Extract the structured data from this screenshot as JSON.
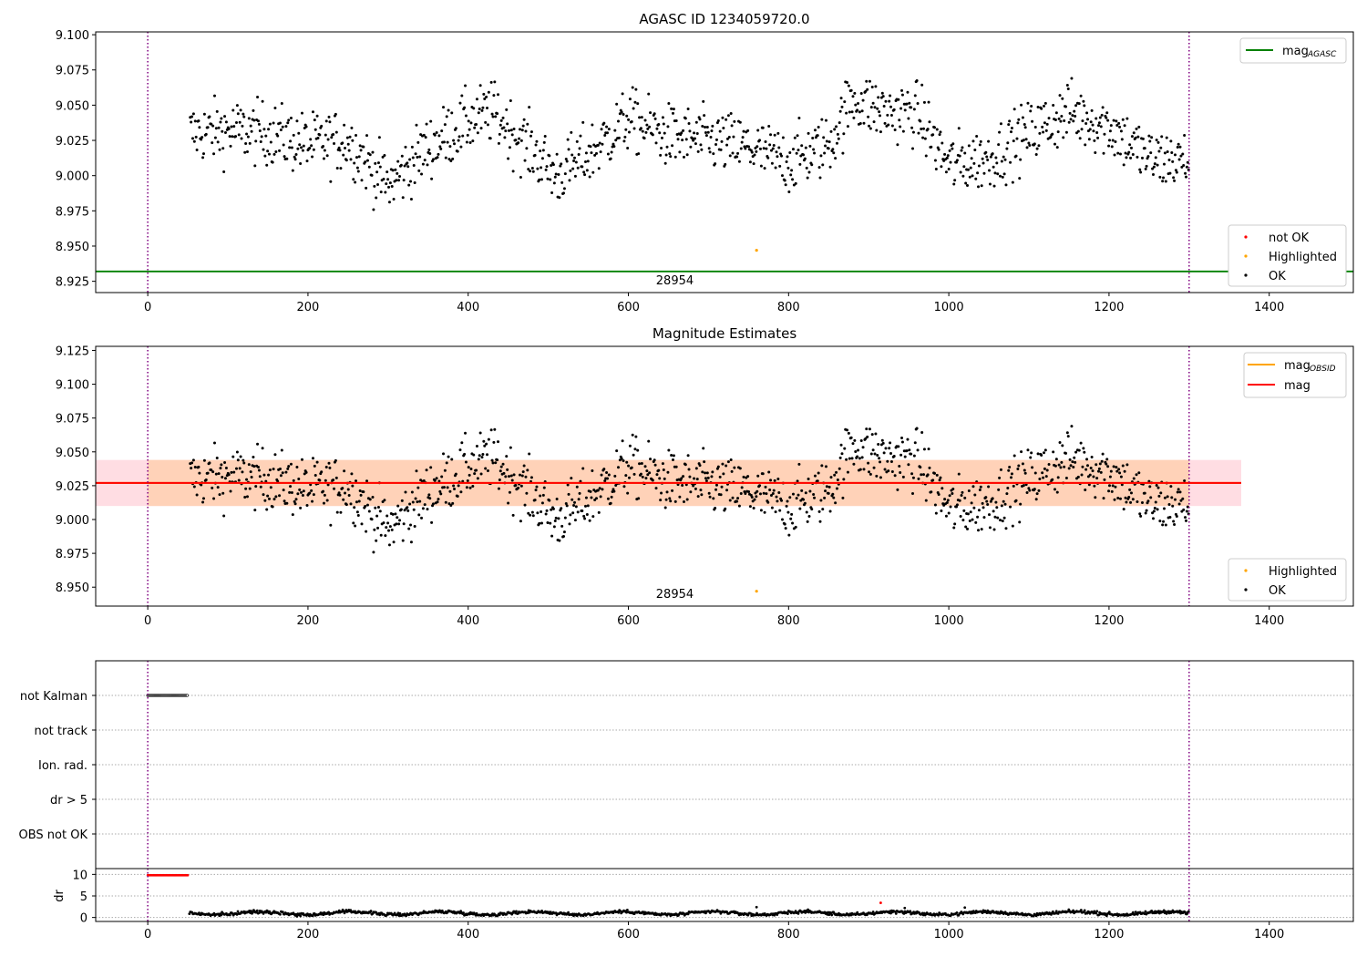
{
  "chart_data": [
    {
      "type": "scatter",
      "title": "AGASC ID 1234059720.0",
      "xlim": [
        -65,
        1505
      ],
      "ylim": [
        8.917,
        9.102
      ],
      "x_ticks": [
        0,
        200,
        400,
        600,
        800,
        1000,
        1200,
        1400
      ],
      "y_ticks": [
        "8.925",
        "8.950",
        "8.975",
        "9.000",
        "9.025",
        "9.050",
        "9.075",
        "9.100"
      ],
      "legend_top": {
        "position": "top-right",
        "entries": [
          {
            "label": "mag",
            "sub": "AGASC",
            "color": "#008000"
          }
        ]
      },
      "legend_bottom": {
        "position": "lower-right",
        "entries": [
          {
            "label": "not OK",
            "color": "#ff0000"
          },
          {
            "label": "Highlighted",
            "color": "#ffa500"
          },
          {
            "label": "OK",
            "color": "#000000"
          }
        ]
      },
      "hlines": [
        {
          "name": "mag_AGASC",
          "y": 8.932,
          "color": "#008000"
        }
      ],
      "vlines": [
        {
          "x": 0,
          "color": "#800080",
          "style": "dotted"
        },
        {
          "x": 1300,
          "color": "#800080",
          "style": "dotted"
        }
      ],
      "obsid_label": {
        "text": "28954",
        "x": 650
      },
      "highlighted_points": [
        {
          "x": 760,
          "y": 8.947
        }
      ],
      "ok_series_trend": {
        "x": [
          50,
          100,
          150,
          200,
          250,
          300,
          350,
          400,
          430,
          480,
          510,
          550,
          600,
          650,
          700,
          750,
          800,
          850,
          880,
          920,
          960,
          1000,
          1050,
          1100,
          1150,
          1200,
          1250,
          1300
        ],
        "y": [
          9.03,
          9.032,
          9.03,
          9.022,
          9.025,
          8.993,
          9.02,
          9.038,
          9.045,
          9.018,
          9.0,
          9.015,
          9.04,
          9.028,
          9.025,
          9.02,
          9.01,
          9.022,
          9.055,
          9.045,
          9.045,
          9.008,
          9.012,
          9.03,
          9.045,
          9.035,
          9.012,
          9.01
        ]
      }
    },
    {
      "type": "scatter",
      "title": "Magnitude Estimates",
      "xlim": [
        -65,
        1505
      ],
      "ylim": [
        8.936,
        9.128
      ],
      "x_ticks": [
        0,
        200,
        400,
        600,
        800,
        1000,
        1200,
        1400
      ],
      "y_ticks": [
        "8.950",
        "8.975",
        "9.000",
        "9.025",
        "9.050",
        "9.075",
        "9.100",
        "9.125"
      ],
      "legend_top": {
        "position": "top-right",
        "entries": [
          {
            "label": "mag",
            "sub": "OBSID",
            "color": "#ffa500"
          },
          {
            "label": "mag",
            "sub": "",
            "color": "#ff0000"
          }
        ]
      },
      "legend_bottom": {
        "position": "lower-right",
        "entries": [
          {
            "label": "Highlighted",
            "color": "#ffa500"
          },
          {
            "label": "OK",
            "color": "#000000"
          }
        ]
      },
      "mag_line": {
        "y": 9.027,
        "color": "#ff0000",
        "band": [
          9.01,
          9.044
        ],
        "band_x": [
          -65,
          1365
        ],
        "band_color": "#ffdde3"
      },
      "obsid_band": {
        "x": [
          0,
          1300
        ],
        "y": [
          9.01,
          9.044
        ],
        "color": "#ffd2b8"
      },
      "vlines": [
        {
          "x": 0,
          "color": "#800080",
          "style": "dotted"
        },
        {
          "x": 1300,
          "color": "#800080",
          "style": "dotted"
        }
      ],
      "obsid_label": {
        "text": "28954",
        "x": 650
      },
      "highlighted_points": [
        {
          "x": 760,
          "y": 8.947
        }
      ]
    },
    {
      "type": "scatter",
      "title": "",
      "xlim": [
        -65,
        1505
      ],
      "flag_rows": [
        "not Kalman",
        "not track",
        "Ion. rad.",
        "dr > 5",
        "OBS not OK"
      ],
      "flag_points": [
        {
          "row": "not Kalman",
          "x_range": [
            0,
            50
          ]
        }
      ],
      "dr_ylabel": "dr",
      "dr_ticks": [
        "0",
        "5",
        "10"
      ],
      "dr_ylim": [
        -0.5,
        10.5
      ],
      "dr_typical": 1.0,
      "dr_red_band": {
        "x_range": [
          0,
          50
        ],
        "y": 9.8
      },
      "dr_outliers": [
        {
          "x": 760,
          "y": 2.4,
          "color": "#000000"
        },
        {
          "x": 915,
          "y": 3.4,
          "color": "#ff0000"
        },
        {
          "x": 945,
          "y": 2.2,
          "color": "#000000"
        },
        {
          "x": 1020,
          "y": 2.3,
          "color": "#000000"
        }
      ],
      "x_ticks": [
        0,
        200,
        400,
        600,
        800,
        1000,
        1200,
        1400
      ],
      "vlines": [
        {
          "x": 0,
          "color": "#800080",
          "style": "dotted"
        },
        {
          "x": 1300,
          "color": "#800080",
          "style": "dotted"
        }
      ]
    }
  ]
}
